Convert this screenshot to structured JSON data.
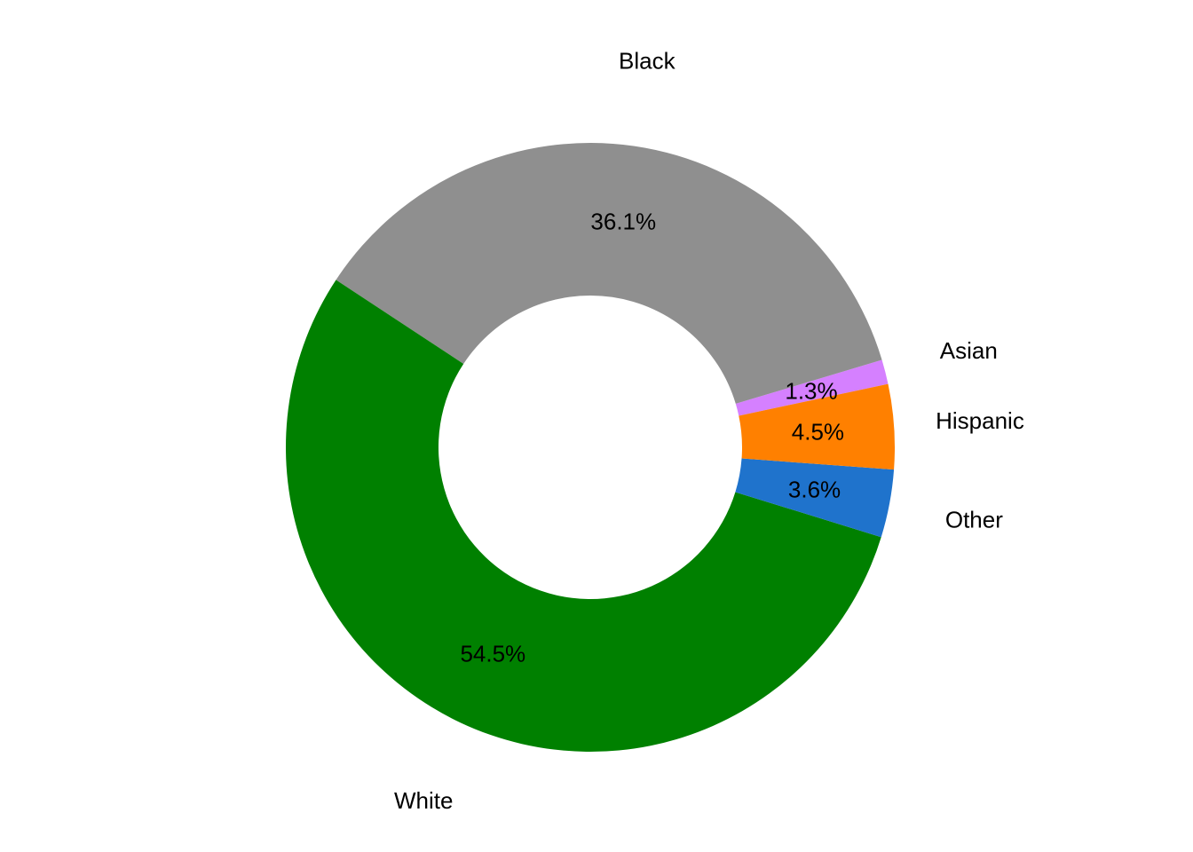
{
  "chart_data": {
    "type": "pie",
    "variant": "donut",
    "title": "",
    "start_angle_deg": 12,
    "direction": "counterclockwise",
    "slices": [
      {
        "label": "Asian",
        "value": 1.3,
        "value_label": "1.3%",
        "color": "#d580ff"
      },
      {
        "label": "Black",
        "value": 36.1,
        "value_label": "36.1%",
        "color": "#8f8f8f"
      },
      {
        "label": "White",
        "value": 54.5,
        "value_label": "54.5%",
        "color": "#008000"
      },
      {
        "label": "Other",
        "value": 3.6,
        "value_label": "3.6%",
        "color": "#1f73cc"
      },
      {
        "label": "Hispanic",
        "value": 4.5,
        "value_label": "4.5%",
        "color": "#ff8000"
      }
    ]
  }
}
